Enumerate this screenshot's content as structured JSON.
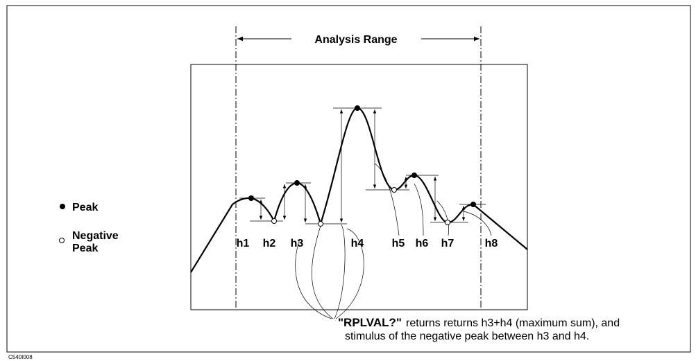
{
  "title": "Analysis Range",
  "legend": {
    "peak": "Peak",
    "negative_peak": [
      "Negative",
      "Peak"
    ]
  },
  "labels": [
    "h1",
    "h2",
    "h3",
    "h4",
    "h5",
    "h6",
    "h7",
    "h8"
  ],
  "callout": {
    "command": "\"RPLVAL?\"",
    "line1": "returns returns h3+h4 (maximum sum), and",
    "line2": "stimulus of the negative peak between h3 and h4."
  },
  "figure_id": "C540I008"
}
